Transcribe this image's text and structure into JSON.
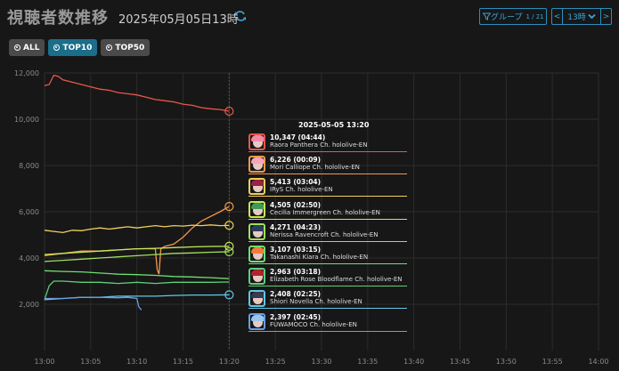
{
  "header": {
    "title": "視聴者数推移",
    "datetime": "2025年05月05日13時",
    "group_label": "グループ",
    "group_count": "1 / 21",
    "prev_label": "<",
    "hour_label": "13時",
    "next_label": ">"
  },
  "filters": [
    {
      "label": "ALL",
      "active": false
    },
    {
      "label": "TOP10",
      "active": true
    },
    {
      "label": "TOP50",
      "active": false
    }
  ],
  "tooltip": {
    "date": "2025-05-05 13:20",
    "rows": [
      {
        "value": "10,347 (04:44)",
        "name": "Raora Panthera Ch. hololive-EN",
        "color": "#e8574b",
        "hair": "#f08aa8"
      },
      {
        "value": "6,226 (00:09)",
        "name": "Mori Calliope Ch. hololive-EN",
        "color": "#f2994a",
        "hair": "#f4a7b9"
      },
      {
        "value": "5,413 (03:04)",
        "name": "IRyS Ch. hololive-EN",
        "color": "#f2cf5b",
        "hair": "#9a2340"
      },
      {
        "value": "4,505 (02:50)",
        "name": "Cecilia Immergreen Ch. hololive-EN",
        "color": "#c8e85a",
        "hair": "#3e9a5a"
      },
      {
        "value": "4,271 (04:23)",
        "name": "Nerissa Ravencroft Ch. hololive-EN",
        "color": "#9fe05e",
        "hair": "#2c3c5e"
      },
      {
        "value": "3,107 (03:15)",
        "name": "Takanashi Kiara Ch. hololive-EN",
        "color": "#6ee06e",
        "hair": "#f27a3a"
      },
      {
        "value": "2,963 (03:18)",
        "name": "Elizabeth Rose Bloodflame Ch. hololive-EN",
        "color": "#5fcf7a",
        "hair": "#b0232f"
      },
      {
        "value": "2,408 (02:25)",
        "name": "Shiori Novella Ch. hololive-EN",
        "color": "#5fc8e6",
        "hair": "#3a3a4e"
      },
      {
        "value": "2,397 (02:45)",
        "name": "FUWAMOCO Ch. hololive-EN",
        "color": "#6a9fe0",
        "hair": "#9ac6f0"
      }
    ]
  },
  "chart_data": {
    "type": "line",
    "ylim": [
      0,
      12000
    ],
    "yticks": [
      "2,000",
      "4,000",
      "6,000",
      "8,000",
      "10,000",
      "12,000"
    ],
    "ytick_values": [
      2000,
      4000,
      6000,
      8000,
      10000,
      12000
    ],
    "xticks": [
      "13:00",
      "13:05",
      "13:10",
      "13:15",
      "13:20",
      "13:25",
      "13:30",
      "13:35",
      "13:40",
      "13:45",
      "13:50",
      "13:55",
      "14:00"
    ],
    "xlim_minutes": [
      0,
      60
    ],
    "grid": true,
    "cursor_minute": 20,
    "series": [
      {
        "name": "Raora Panthera Ch. hololive-EN",
        "color": "#e8574b",
        "x": [
          0,
          0.5,
          1,
          1.5,
          2,
          3,
          4,
          5,
          6,
          7,
          8,
          9,
          10,
          11,
          12,
          13,
          14,
          15,
          16,
          17,
          18,
          19,
          20
        ],
        "y": [
          11450,
          11500,
          11900,
          11850,
          11700,
          11600,
          11500,
          11400,
          11300,
          11250,
          11150,
          11100,
          11050,
          10950,
          10850,
          10800,
          10750,
          10650,
          10600,
          10500,
          10450,
          10420,
          10347
        ]
      },
      {
        "name": "Mori Calliope Ch. hololive-EN",
        "color": "#f2994a",
        "x": [
          0,
          2,
          4,
          6,
          8,
          10,
          12,
          12.2,
          12.4,
          12.6,
          12.8,
          13,
          14,
          15,
          16,
          17,
          18,
          19,
          20
        ],
        "y": [
          4100,
          4200,
          4300,
          4300,
          4350,
          4400,
          4400,
          3500,
          3300,
          4400,
          4450,
          4500,
          4600,
          4900,
          5300,
          5600,
          5800,
          6000,
          6226
        ]
      },
      {
        "name": "IRyS Ch. hololive-EN",
        "color": "#f2cf5b",
        "x": [
          0,
          1,
          2,
          3,
          4,
          5,
          6,
          7,
          8,
          9,
          10,
          11,
          12,
          13,
          14,
          15,
          16,
          17,
          18,
          19,
          20
        ],
        "y": [
          5200,
          5150,
          5100,
          5200,
          5180,
          5250,
          5300,
          5250,
          5300,
          5350,
          5300,
          5350,
          5400,
          5350,
          5400,
          5380,
          5420,
          5400,
          5430,
          5400,
          5413
        ]
      },
      {
        "name": "Cecilia Immergreen Ch. hololive-EN",
        "color": "#c8e85a",
        "x": [
          0,
          2,
          4,
          6,
          8,
          10,
          12,
          14,
          16,
          18,
          20
        ],
        "y": [
          4150,
          4200,
          4250,
          4300,
          4350,
          4400,
          4420,
          4450,
          4480,
          4500,
          4505
        ]
      },
      {
        "name": "Nerissa Ravencroft Ch. hololive-EN",
        "color": "#9fe05e",
        "x": [
          0,
          2,
          4,
          6,
          8,
          10,
          12,
          14,
          16,
          18,
          20
        ],
        "y": [
          3850,
          3900,
          3950,
          4000,
          4050,
          4100,
          4150,
          4200,
          4220,
          4250,
          4271
        ]
      },
      {
        "name": "Takanashi Kiara Ch. hololive-EN",
        "color": "#6ee06e",
        "x": [
          0,
          2,
          4,
          6,
          8,
          10,
          12,
          14,
          16,
          18,
          20
        ],
        "y": [
          3450,
          3420,
          3400,
          3350,
          3300,
          3280,
          3250,
          3200,
          3180,
          3150,
          3107
        ]
      },
      {
        "name": "Elizabeth Rose Bloodflame Ch. hololive-EN",
        "color": "#5fcf7a",
        "x": [
          0,
          0.5,
          1,
          2,
          4,
          6,
          8,
          10,
          12,
          14,
          16,
          18,
          20
        ],
        "y": [
          2200,
          2800,
          3000,
          3000,
          2950,
          2950,
          2900,
          2950,
          2900,
          2950,
          2950,
          2950,
          2963
        ]
      },
      {
        "name": "Shiori Novella Ch. hololive-EN",
        "color": "#5fc8e6",
        "x": [
          0,
          2,
          4,
          6,
          8,
          10,
          12,
          14,
          16,
          18,
          20
        ],
        "y": [
          2200,
          2250,
          2300,
          2300,
          2350,
          2350,
          2350,
          2380,
          2400,
          2400,
          2408
        ]
      },
      {
        "name": "FUWAMOCO Ch. hololive-EN",
        "color": "#6a9fe0",
        "x": [
          0,
          2,
          4,
          6,
          8,
          9,
          10,
          10.2,
          10.5
        ],
        "y": [
          2250,
          2250,
          2300,
          2300,
          2280,
          2300,
          2250,
          1900,
          1750
        ]
      }
    ],
    "markers": [
      {
        "x": 20,
        "y": 10347,
        "color": "#e8574b"
      },
      {
        "x": 20,
        "y": 6226,
        "color": "#f2994a"
      },
      {
        "x": 20,
        "y": 5413,
        "color": "#f2cf5b"
      },
      {
        "x": 20,
        "y": 4505,
        "color": "#c8e85a"
      },
      {
        "x": 20,
        "y": 4271,
        "color": "#9fe05e"
      },
      {
        "x": 20,
        "y": 2408,
        "color": "#5fc8e6"
      }
    ]
  }
}
